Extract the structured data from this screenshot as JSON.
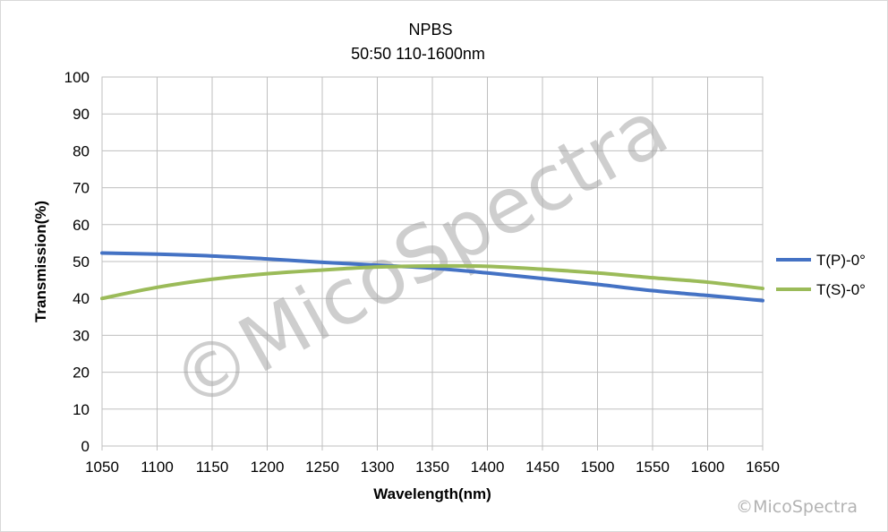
{
  "chart_data": {
    "type": "line",
    "title": "NPBS",
    "subtitle": "50:50   110-1600nm",
    "xlabel": "Wavelength(nm)",
    "ylabel": "Transmission(%)",
    "xlim": [
      1050,
      1650
    ],
    "ylim": [
      0,
      100
    ],
    "xticks": [
      1050,
      1100,
      1150,
      1200,
      1250,
      1300,
      1350,
      1400,
      1450,
      1500,
      1550,
      1600,
      1650
    ],
    "yticks": [
      0,
      10,
      20,
      30,
      40,
      50,
      60,
      70,
      80,
      90,
      100
    ],
    "grid": true,
    "legend_position": "right",
    "x": [
      1050,
      1100,
      1150,
      1200,
      1250,
      1300,
      1350,
      1400,
      1450,
      1500,
      1550,
      1600,
      1650
    ],
    "series": [
      {
        "name": "T(P)-0°",
        "color": "#4472c4",
        "values": [
          52.3,
          52.0,
          51.5,
          50.7,
          49.8,
          49.0,
          48.2,
          46.9,
          45.4,
          43.8,
          42.1,
          40.8,
          39.4
        ]
      },
      {
        "name": "T(S)-0°",
        "color": "#9bbb59",
        "values": [
          40.0,
          43.0,
          45.2,
          46.7,
          47.7,
          48.5,
          48.8,
          48.7,
          47.9,
          46.9,
          45.6,
          44.4,
          42.7
        ]
      }
    ]
  },
  "watermark": {
    "main": "©MicoSpectra",
    "corner": "©MicoSpectra"
  }
}
